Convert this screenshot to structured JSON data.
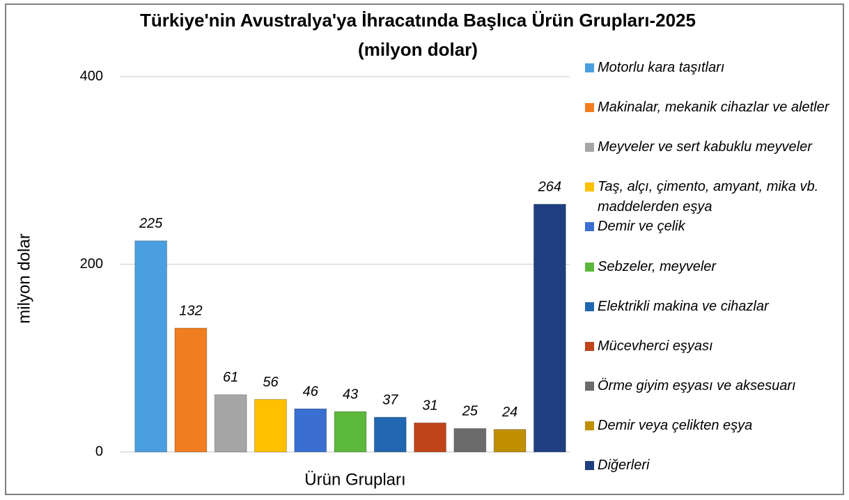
{
  "chart_data": {
    "type": "bar",
    "title": "Türkiye'nin Avustralya'ya İhracatında Başlıca Ürün Grupları-2025",
    "subtitle": "(milyon dolar)",
    "x_label": "Ürün Grupları",
    "y_label": "milyon dolar",
    "categories": [
      "Motorlu kara taşıtları",
      "Makinalar, mekanik cihazlar ve aletler",
      "Meyveler ve sert kabuklu meyveler",
      "Taş, alçı, çimento, amyant, mika vb. maddelerden eşya",
      "Demir ve çelik",
      "Sebzeler, meyveler",
      "Elektrikli makina ve cihazlar",
      "Mücevherci eşyası",
      "Örme giyim eşyası ve aksesuarı",
      "Demir veya çelikten eşya",
      "Diğerleri"
    ],
    "values": [
      225,
      132,
      61,
      56,
      46,
      43,
      37,
      31,
      25,
      24,
      264
    ],
    "colors": [
      "#4a9fe0",
      "#f07d1f",
      "#a6a6a6",
      "#ffc000",
      "#3a6fd1",
      "#5cb83a",
      "#2166b0",
      "#c0441a",
      "#6b6b6b",
      "#bf8f00",
      "#1f3f80"
    ],
    "ylim": [
      0,
      400
    ],
    "yticks": [
      0,
      200,
      400
    ],
    "grid": true,
    "legend": "right"
  }
}
